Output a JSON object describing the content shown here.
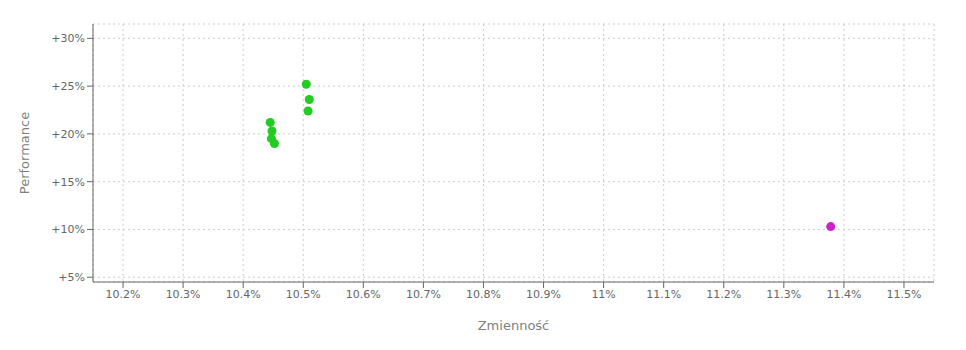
{
  "chart_data": {
    "type": "scatter",
    "xlabel": "Zmienność",
    "ylabel": "Performance",
    "xlim": [
      10.15,
      11.55
    ],
    "ylim": [
      4.5,
      31.5
    ],
    "xticks": [
      {
        "value": 10.2,
        "label": "10.2%"
      },
      {
        "value": 10.3,
        "label": "10.3%"
      },
      {
        "value": 10.4,
        "label": "10.4%"
      },
      {
        "value": 10.5,
        "label": "10.5%"
      },
      {
        "value": 10.6,
        "label": "10.6%"
      },
      {
        "value": 10.7,
        "label": "10.7%"
      },
      {
        "value": 10.8,
        "label": "10.8%"
      },
      {
        "value": 10.9,
        "label": "10.9%"
      },
      {
        "value": 11.0,
        "label": "11%"
      },
      {
        "value": 11.1,
        "label": "11.1%"
      },
      {
        "value": 11.2,
        "label": "11.2%"
      },
      {
        "value": 11.3,
        "label": "11.3%"
      },
      {
        "value": 11.4,
        "label": "11.4%"
      },
      {
        "value": 11.5,
        "label": "11.5%"
      }
    ],
    "yticks": [
      {
        "value": 5,
        "label": "+5%"
      },
      {
        "value": 10,
        "label": "+10%"
      },
      {
        "value": 15,
        "label": "+15%"
      },
      {
        "value": 20,
        "label": "+20%"
      },
      {
        "value": 25,
        "label": "+25%"
      },
      {
        "value": 30,
        "label": "+30%"
      }
    ],
    "grid": true,
    "series": [
      {
        "color": "#22cc22",
        "x": [
          10.445,
          10.448,
          10.447,
          10.452,
          10.505,
          10.51,
          10.508
        ],
        "values": [
          21.2,
          20.3,
          19.5,
          19.0,
          25.2,
          23.6,
          22.4
        ]
      },
      {
        "color": "#cc22cc",
        "x": [
          11.378
        ],
        "values": [
          10.3
        ]
      }
    ]
  }
}
